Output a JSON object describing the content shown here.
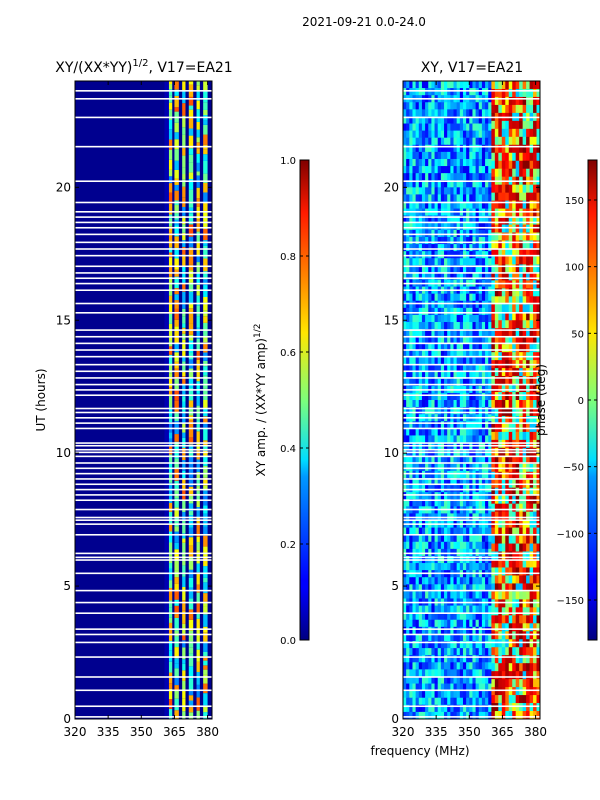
{
  "suptitle": "2021-09-21 0.0-24.0",
  "chart_data": [
    {
      "type": "heatmap",
      "title": "XY/(XX*YY)^1/2, V17=EA21",
      "title_base": "XY/(XX*YY)",
      "title_exp": "1/2",
      "title_suffix": ", V17=EA21",
      "xlabel": "frequency (MHz)",
      "ylabel": "UT (hours)",
      "xlim": [
        320,
        382
      ],
      "ylim": [
        0,
        24
      ],
      "xticks": [
        320,
        335,
        350,
        365,
        380
      ],
      "yticks": [
        0,
        5,
        10,
        15,
        20
      ],
      "colormap": "jet",
      "colorbar": {
        "label": "XY amp. / (XX*YY amp)",
        "label_exp": "1/2",
        "range": [
          0.0,
          1.0
        ],
        "ticks": [
          "0.0",
          "0.2",
          "0.4",
          "0.6",
          "0.8",
          "1.0"
        ],
        "tick_values": [
          0.0,
          0.2,
          0.4,
          0.6,
          0.8,
          1.0
        ]
      },
      "description_of_data": "Near-zero amplitude over 320-360 MHz; higher values (0.3-0.8) in bands between 362-381 MHz",
      "bright_bands_mhz": [
        [
          362.5,
          364.0
        ],
        [
          365.0,
          367.0
        ],
        [
          368.5,
          370.0
        ],
        [
          371.5,
          373.5
        ],
        [
          375.0,
          376.5
        ],
        [
          378.0,
          380.0
        ]
      ]
    },
    {
      "type": "heatmap",
      "title": "XY, V17=EA21",
      "xlabel": "frequency (MHz)",
      "ylabel": "",
      "xlim": [
        320,
        382
      ],
      "ylim": [
        0,
        24
      ],
      "xticks": [
        320,
        335,
        350,
        365,
        380
      ],
      "yticks": [
        0,
        5,
        10,
        15,
        20
      ],
      "colormap": "jet",
      "colorbar": {
        "label": "phase (deg)",
        "range": [
          -180,
          180
        ],
        "ticks": [
          "−150",
          "−100",
          "−50",
          "0",
          "50",
          "100",
          "150"
        ],
        "tick_values": [
          -150,
          -100,
          -50,
          0,
          50,
          100,
          150
        ]
      },
      "description_of_data": "Noisy phase around 0 deg across 320-360 MHz; structured +/-180 deg phase in 360-381 MHz"
    }
  ],
  "gap_rows_hours": [
    0.05,
    0.45,
    1.05,
    1.55,
    2.3,
    2.85,
    3.15,
    3.35,
    3.95,
    4.35,
    4.8,
    5.45,
    5.95,
    6.05,
    6.2,
    6.9,
    7.3,
    7.45,
    7.55,
    7.85,
    8.2,
    8.4,
    8.6,
    8.8,
    9.0,
    9.2,
    9.4,
    9.6,
    9.85,
    10.0,
    10.1,
    10.25,
    10.35,
    10.9,
    11.1,
    11.3,
    11.5,
    11.65,
    12.15,
    12.35,
    12.55,
    12.8,
    13.05,
    13.3,
    13.6,
    13.85,
    14.1,
    14.35,
    14.6,
    15.25,
    15.6,
    16.1,
    16.35,
    16.55,
    16.75,
    17.0,
    17.4,
    17.65,
    17.9,
    18.2,
    18.45,
    18.65,
    18.85,
    19.05,
    19.4,
    20.2,
    21.5,
    22.6,
    23.3,
    23.6
  ]
}
